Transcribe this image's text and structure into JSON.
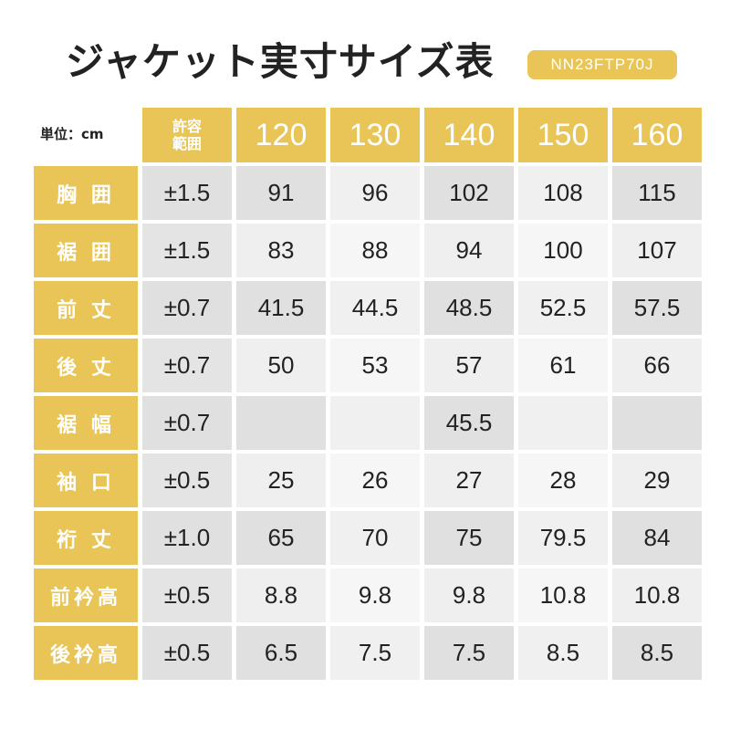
{
  "title": "ジャケット実寸サイズ表",
  "product_code": "NN23FTP70J",
  "unit_label": "単位：cm",
  "header": {
    "tolerance_label_line1": "許容",
    "tolerance_label_line2": "範囲",
    "sizes": [
      "120",
      "130",
      "140",
      "150",
      "160"
    ]
  },
  "rows": [
    {
      "label": "胸 囲",
      "tolerance": "±1.5",
      "values": [
        "91",
        "96",
        "102",
        "108",
        "115"
      ]
    },
    {
      "label": "裾 囲",
      "tolerance": "±1.5",
      "values": [
        "83",
        "88",
        "94",
        "100",
        "107"
      ]
    },
    {
      "label": "前 丈",
      "tolerance": "±0.7",
      "values": [
        "41.5",
        "44.5",
        "48.5",
        "52.5",
        "57.5"
      ]
    },
    {
      "label": "後 丈",
      "tolerance": "±0.7",
      "values": [
        "50",
        "53",
        "57",
        "61",
        "66"
      ]
    },
    {
      "label": "裾 幅",
      "tolerance": "±0.7",
      "values": [
        "",
        "",
        "45.5",
        "",
        ""
      ]
    },
    {
      "label": "袖 口",
      "tolerance": "±0.5",
      "values": [
        "25",
        "26",
        "27",
        "28",
        "29"
      ]
    },
    {
      "label": "裄 丈",
      "tolerance": "±1.0",
      "values": [
        "65",
        "70",
        "75",
        "79.5",
        "84"
      ]
    },
    {
      "label": "前衿高",
      "tolerance": "±0.5",
      "values": [
        "8.8",
        "9.8",
        "9.8",
        "10.8",
        "10.8"
      ]
    },
    {
      "label": "後衿高",
      "tolerance": "±0.5",
      "values": [
        "6.5",
        "7.5",
        "7.5",
        "8.5",
        "8.5"
      ]
    }
  ],
  "colors": {
    "accent": "#e9c557",
    "cell_dark": "#e0e0e0",
    "cell_light": "#f0f0f0"
  }
}
